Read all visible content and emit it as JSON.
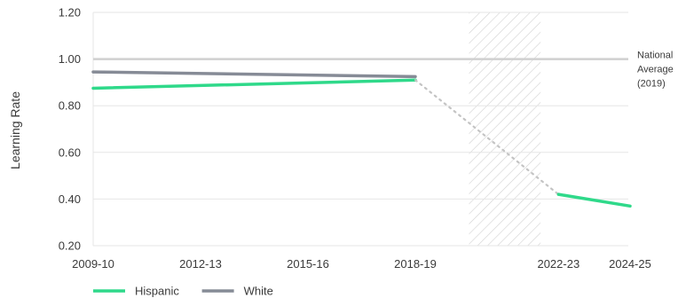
{
  "chart_data": {
    "type": "line",
    "title": "",
    "xlabel": "",
    "ylabel": "Learning Rate",
    "x_ticks": [
      "2009-10",
      "2012-13",
      "2015-16",
      "2018-19",
      "2022-23",
      "2024-25"
    ],
    "ylim": [
      0.2,
      1.2
    ],
    "y_ticks": [
      "0.20",
      "0.40",
      "0.60",
      "0.80",
      "1.00",
      "1.20"
    ],
    "grid": "horizontal",
    "legend_position": "bottom-left",
    "shaded_period": {
      "from": 2019.5,
      "to": 2021.5,
      "pattern": "diagonal-hatch"
    },
    "reference_line": {
      "value": 1.0,
      "label_lines": [
        "National",
        "Average",
        "(2019)"
      ],
      "color": "#d0d0d0"
    },
    "series": [
      {
        "name": "Hispanic",
        "color": "#2fd98a",
        "segments": [
          {
            "style": "solid",
            "points": [
              [
                2009,
                0.875
              ],
              [
                2018,
                0.91
              ]
            ]
          },
          {
            "style": "dotted",
            "points": [
              [
                2018,
                0.91
              ],
              [
                2022,
                0.42
              ]
            ]
          },
          {
            "style": "solid",
            "points": [
              [
                2022,
                0.42
              ],
              [
                2024,
                0.37
              ]
            ]
          }
        ]
      },
      {
        "name": "White",
        "color": "#868b96",
        "segments": [
          {
            "style": "solid",
            "points": [
              [
                2009,
                0.945
              ],
              [
                2018,
                0.925
              ]
            ]
          }
        ]
      }
    ],
    "gap_color": "#c4c4c4"
  }
}
